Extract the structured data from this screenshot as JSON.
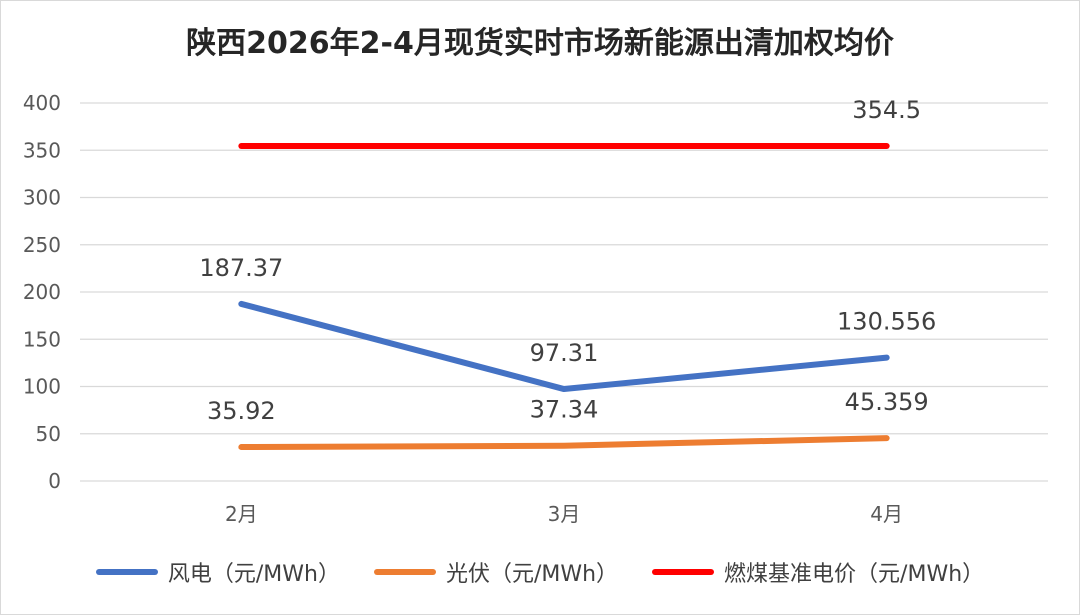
{
  "chart_data": {
    "type": "line",
    "title": "陕西2026年2-4月现货实时市场新能源出清加权均价",
    "categories": [
      "2月",
      "3月",
      "4月"
    ],
    "ylim": [
      0,
      400
    ],
    "yticks": [
      0,
      50,
      100,
      150,
      200,
      250,
      300,
      350,
      400
    ],
    "grid": true,
    "legend_position": "bottom",
    "series": [
      {
        "name": "风电（元/MWh）",
        "values": [
          187.37,
          97.31,
          130.556
        ],
        "labels": [
          "187.37",
          "97.31",
          "130.556"
        ],
        "color": "#4472C4"
      },
      {
        "name": "光伏（元/MWh）",
        "values": [
          35.92,
          37.34,
          45.359
        ],
        "labels": [
          "35.92",
          "37.34",
          "45.359"
        ],
        "color": "#ED7D31"
      },
      {
        "name": "燃煤基准电价（元/MWh）",
        "values": [
          354.5,
          354.5,
          354.5
        ],
        "labels": [
          "",
          "",
          "354.5"
        ],
        "color": "#FF0000"
      }
    ]
  }
}
